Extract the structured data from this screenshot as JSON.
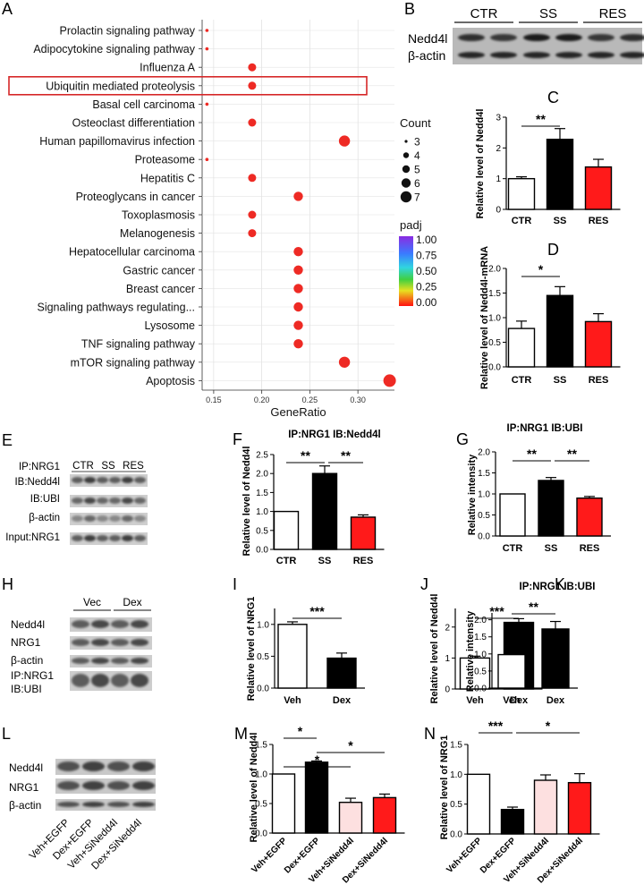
{
  "chart_data": [
    {
      "panel": "A",
      "type": "scatter",
      "xlabel": "GeneRatio",
      "xticks": [
        "0.15",
        "0.20",
        "0.25",
        "0.30"
      ],
      "xlim": [
        0.138,
        0.338
      ],
      "highlighted": "Ubiquitin mediated proteolysis",
      "size_legend": {
        "title": "Count",
        "labels": [
          "3",
          "4",
          "5",
          "6",
          "7"
        ]
      },
      "color_legend": {
        "title": "padj",
        "labels": [
          "1.00",
          "0.75",
          "0.50",
          "0.25",
          "0.00"
        ]
      },
      "points": [
        {
          "term": "Prolactin signaling pathway",
          "x": 0.143,
          "count": 3
        },
        {
          "term": "Adipocytokine signaling pathway",
          "x": 0.143,
          "count": 3
        },
        {
          "term": "Influenza A",
          "x": 0.19,
          "count": 4
        },
        {
          "term": "Ubiquitin mediated proteolysis",
          "x": 0.19,
          "count": 4
        },
        {
          "term": "Basal cell carcinoma",
          "x": 0.143,
          "count": 3
        },
        {
          "term": "Osteoclast differentiation",
          "x": 0.19,
          "count": 4
        },
        {
          "term": "Human papillomavirus infection",
          "x": 0.286,
          "count": 6
        },
        {
          "term": "Proteasome",
          "x": 0.143,
          "count": 3
        },
        {
          "term": "Hepatitis C",
          "x": 0.19,
          "count": 4
        },
        {
          "term": "Proteoglycans in cancer",
          "x": 0.238,
          "count": 5
        },
        {
          "term": "Toxoplasmosis",
          "x": 0.19,
          "count": 4
        },
        {
          "term": "Melanogenesis",
          "x": 0.19,
          "count": 4
        },
        {
          "term": "Hepatocellular carcinoma",
          "x": 0.238,
          "count": 5
        },
        {
          "term": "Gastric cancer",
          "x": 0.238,
          "count": 5
        },
        {
          "term": "Breast cancer",
          "x": 0.238,
          "count": 5
        },
        {
          "term": "Signaling pathways regulating...",
          "x": 0.238,
          "count": 5
        },
        {
          "term": "Lysosome",
          "x": 0.238,
          "count": 5
        },
        {
          "term": "TNF signaling pathway",
          "x": 0.238,
          "count": 5
        },
        {
          "term": "mTOR signaling pathway",
          "x": 0.286,
          "count": 6
        },
        {
          "term": "Apoptosis",
          "x": 0.333,
          "count": 7
        }
      ]
    },
    {
      "panel": "C",
      "type": "bar",
      "ylabel": "Relative level of Nedd4l",
      "categories": [
        "CTR",
        "SS",
        "RES"
      ],
      "values": [
        1.0,
        2.28,
        1.38
      ],
      "errors": [
        0.06,
        0.35,
        0.25
      ],
      "fills": [
        "#ffffff",
        "#000000",
        "#ff1a1a"
      ],
      "ylim": [
        0,
        3
      ],
      "yticks": [
        "0",
        "1",
        "2",
        "3"
      ],
      "sig": [
        {
          "from": 0,
          "to": 1,
          "label": "**"
        }
      ]
    },
    {
      "panel": "D",
      "type": "bar",
      "ylabel": "Relative level of Nedd4l-mRNA",
      "categories": [
        "CTR",
        "SS",
        "RES"
      ],
      "values": [
        0.78,
        1.45,
        0.92
      ],
      "errors": [
        0.15,
        0.18,
        0.16
      ],
      "fills": [
        "#ffffff",
        "#000000",
        "#ff1a1a"
      ],
      "ylim": [
        0,
        2
      ],
      "yticks": [
        "0.0",
        "0.5",
        "1.0",
        "1.5",
        "2.0"
      ],
      "sig": [
        {
          "from": 0,
          "to": 1,
          "label": "*"
        }
      ]
    },
    {
      "panel": "F",
      "type": "bar",
      "title": "IP:NRG1 IB:Nedd4l",
      "ylabel": "Relative level of Nedd4l",
      "categories": [
        "CTR",
        "SS",
        "RES"
      ],
      "values": [
        1.0,
        2.0,
        0.85
      ],
      "errors": [
        0,
        0.2,
        0.06
      ],
      "fills": [
        "#ffffff",
        "#000000",
        "#ff1a1a"
      ],
      "ylim": [
        0,
        2.5
      ],
      "yticks": [
        "0.0",
        "0.5",
        "1.0",
        "1.5",
        "2.0",
        "2.5"
      ],
      "sig": [
        {
          "from": 0,
          "to": 1,
          "label": "**"
        },
        {
          "from": 1,
          "to": 2,
          "label": "**"
        }
      ]
    },
    {
      "panel": "G",
      "type": "bar",
      "title": "IP:NRG1 IB:UBI",
      "ylabel": "Relative intensity",
      "categories": [
        "CTR",
        "SS",
        "RES"
      ],
      "values": [
        1.0,
        1.32,
        0.9
      ],
      "errors": [
        0,
        0.07,
        0.04
      ],
      "fills": [
        "#ffffff",
        "#000000",
        "#ff1a1a"
      ],
      "ylim": [
        0,
        2
      ],
      "yticks": [
        "0.0",
        "0.5",
        "1.0",
        "1.5",
        "2.0"
      ],
      "sig": [
        {
          "from": 0,
          "to": 1,
          "label": "**"
        },
        {
          "from": 1,
          "to": 2,
          "label": "**"
        }
      ]
    },
    {
      "panel": "I",
      "type": "bar",
      "ylabel": "Relative level of NRG1",
      "categories": [
        "Veh",
        "Dex"
      ],
      "values": [
        1.0,
        0.47
      ],
      "errors": [
        0.04,
        0.08
      ],
      "fills": [
        "#ffffff",
        "#000000"
      ],
      "ylim": [
        0,
        1.25
      ],
      "yticks": [
        "0.0",
        "0.5",
        "1.0"
      ],
      "sig": [
        {
          "from": 0,
          "to": 1,
          "label": "***"
        }
      ]
    },
    {
      "panel": "J",
      "type": "bar",
      "ylabel": "Relative level of Nedd4l",
      "categories": [
        "Veh",
        "Dex"
      ],
      "values": [
        1.0,
        2.15
      ],
      "errors": [
        0.06,
        0.12
      ],
      "fills": [
        "#ffffff",
        "#000000"
      ],
      "ylim": [
        0,
        2.6
      ],
      "yticks": [
        "0",
        "1",
        "2"
      ],
      "sig": [
        {
          "from": 0,
          "to": 1,
          "label": "***"
        }
      ]
    },
    {
      "panel": "K",
      "type": "bar",
      "title": "IP:NRG1 IB:UBI",
      "ylabel": "Relative intensity",
      "categories": [
        "Veh",
        "Dex"
      ],
      "values": [
        0.98,
        1.73
      ],
      "errors": [
        0.03,
        0.22
      ],
      "fills": [
        "#ffffff",
        "#000000"
      ],
      "ylim": [
        0,
        2.2
      ],
      "yticks": [
        "0.0",
        "0.5",
        "1.0",
        "1.5",
        "2.0"
      ],
      "sig": [
        {
          "from": 0,
          "to": 1,
          "label": "**"
        }
      ]
    },
    {
      "panel": "M",
      "type": "bar",
      "ylabel": "Relative level of Nedd4l",
      "categories": [
        "Veh+EGFP",
        "Dex+EGFP",
        "Veh+SiNedd4l",
        "Dex+SiNedd4l"
      ],
      "values": [
        1.0,
        1.2,
        0.52,
        0.6
      ],
      "errors": [
        0,
        0.02,
        0.07,
        0.06
      ],
      "fills": [
        "#ffffff",
        "#000000",
        "#fde0e0",
        "#ff1a1a"
      ],
      "ylim": [
        0,
        1.5
      ],
      "yticks": [
        "0.0",
        "0.5",
        "1.0",
        "1.5"
      ],
      "sig": [
        {
          "from": 0,
          "to": 1,
          "label": "*"
        },
        {
          "from": 1,
          "to": 3,
          "label": "*"
        },
        {
          "from": 0,
          "to": 2,
          "label": "*"
        }
      ]
    },
    {
      "panel": "N",
      "type": "bar",
      "ylabel": "Relative level of NRG1",
      "categories": [
        "Veh+EGFP",
        "Dex+EGFP",
        "Veh+SiNedd4l",
        "Dex+SiNedd4l"
      ],
      "values": [
        1.0,
        0.41,
        0.9,
        0.86
      ],
      "errors": [
        0,
        0.04,
        0.09,
        0.15
      ],
      "fills": [
        "#ffffff",
        "#000000",
        "#fde0e0",
        "#ff1a1a"
      ],
      "ylim": [
        0,
        1.5
      ],
      "yticks": [
        "0.0",
        "0.5",
        "1.0",
        "1.5"
      ],
      "sig": [
        {
          "from": 0,
          "to": 1,
          "label": "***"
        },
        {
          "from": 1,
          "to": 3,
          "label": "*"
        }
      ]
    }
  ],
  "blots": [
    {
      "panel": "B",
      "headers": [
        "CTR",
        "SS",
        "RES"
      ],
      "rows": [
        "Nedd4l",
        "β-actin"
      ]
    },
    {
      "panel": "E",
      "headers": [
        "CTR",
        "SS",
        "RES"
      ],
      "rows": [
        "IP:NRG1",
        "IB:Nedd4l",
        "IB:UBI",
        "β-actin",
        "Input:NRG1"
      ]
    },
    {
      "panel": "H",
      "headers": [
        "Vec",
        "Dex"
      ],
      "rows": [
        "Nedd4l",
        "NRG1",
        "β-actin",
        "IP:NRG1",
        "IB:UBI"
      ]
    },
    {
      "panel": "L",
      "headers": [
        "Veh+EGFP",
        "Dex+EGFP",
        "Veh+SiNedd4l",
        "Dex+SiNedd4l"
      ],
      "rows": [
        "Nedd4l",
        "NRG1",
        "β-actin"
      ]
    }
  ],
  "colors": {
    "bar_black": "#000000",
    "bar_red": "#ff1a1a",
    "bar_pink": "#fde0e0",
    "dot": "#ee2a24",
    "highlight_box": "#d62728"
  }
}
